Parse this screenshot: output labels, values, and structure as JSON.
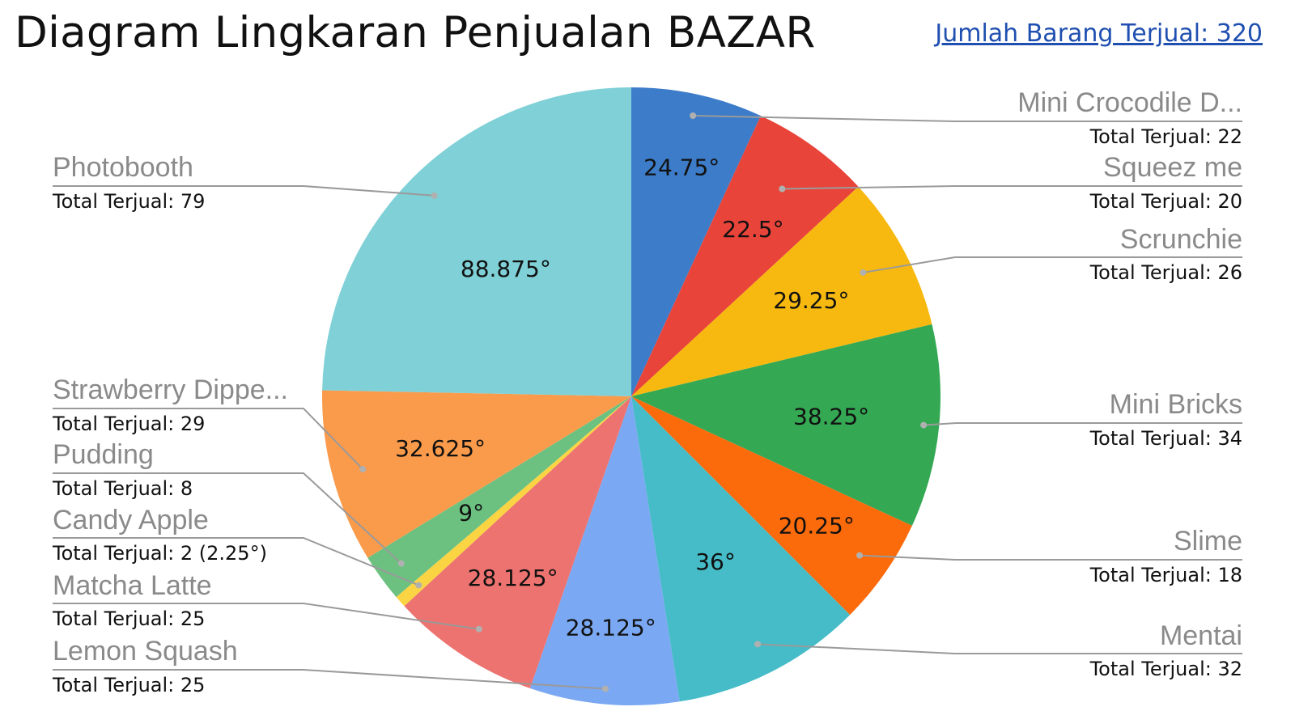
{
  "header": {
    "title": "Diagram Lingkaran Penjualan BAZAR",
    "summary_link": "Jumlah Barang Terjual: 320"
  },
  "chart_data": {
    "type": "pie",
    "title": "Diagram Lingkaran Penjualan BAZAR",
    "total": 320,
    "start_angle_deg": 0,
    "direction": "clockwise",
    "slices": [
      {
        "label": "Mini Crocodile D...",
        "value": 22,
        "total_text": "Total Terjual: 22",
        "angle_label": "24.75°",
        "color": "#3d7cc9"
      },
      {
        "label": "Squeez me",
        "value": 20,
        "total_text": "Total Terjual: 20",
        "angle_label": "22.5°",
        "color": "#e8443a"
      },
      {
        "label": "Scrunchie",
        "value": 26,
        "total_text": "Total Terjual: 26",
        "angle_label": "29.25°",
        "color": "#f7b90f"
      },
      {
        "label": "Mini Bricks",
        "value": 34,
        "total_text": "Total Terjual: 34",
        "angle_label": "38.25°",
        "color": "#34a853"
      },
      {
        "label": "Slime",
        "value": 18,
        "total_text": "Total Terjual: 18",
        "angle_label": "20.25°",
        "color": "#fb6b0c"
      },
      {
        "label": "Mentai",
        "value": 32,
        "total_text": "Total Terjual: 32",
        "angle_label": "36°",
        "color": "#45bcc7"
      },
      {
        "label": "Lemon Squash",
        "value": 25,
        "total_text": "Total Terjual: 25",
        "angle_label": "28.125°",
        "color": "#7aa8f2"
      },
      {
        "label": "Matcha Latte",
        "value": 25,
        "total_text": "Total Terjual: 25",
        "angle_label": "28.125°",
        "color": "#ed7370"
      },
      {
        "label": "Candy Apple",
        "value": 2,
        "total_text": "Total Terjual: 2 (2.25°)",
        "angle_label": "",
        "color": "#fbd444"
      },
      {
        "label": "Pudding",
        "value": 8,
        "total_text": "Total Terjual: 8",
        "angle_label": "9°",
        "color": "#6cc180"
      },
      {
        "label": "Strawberry Dippe...",
        "value": 29,
        "total_text": "Total Terjual: 29",
        "angle_label": "32.625°",
        "color": "#fa9b4c"
      },
      {
        "label": "Photobooth",
        "value": 79,
        "total_text": "Total Terjual: 79",
        "angle_label": "88.875°",
        "color": "#7fd0d7"
      }
    ]
  }
}
